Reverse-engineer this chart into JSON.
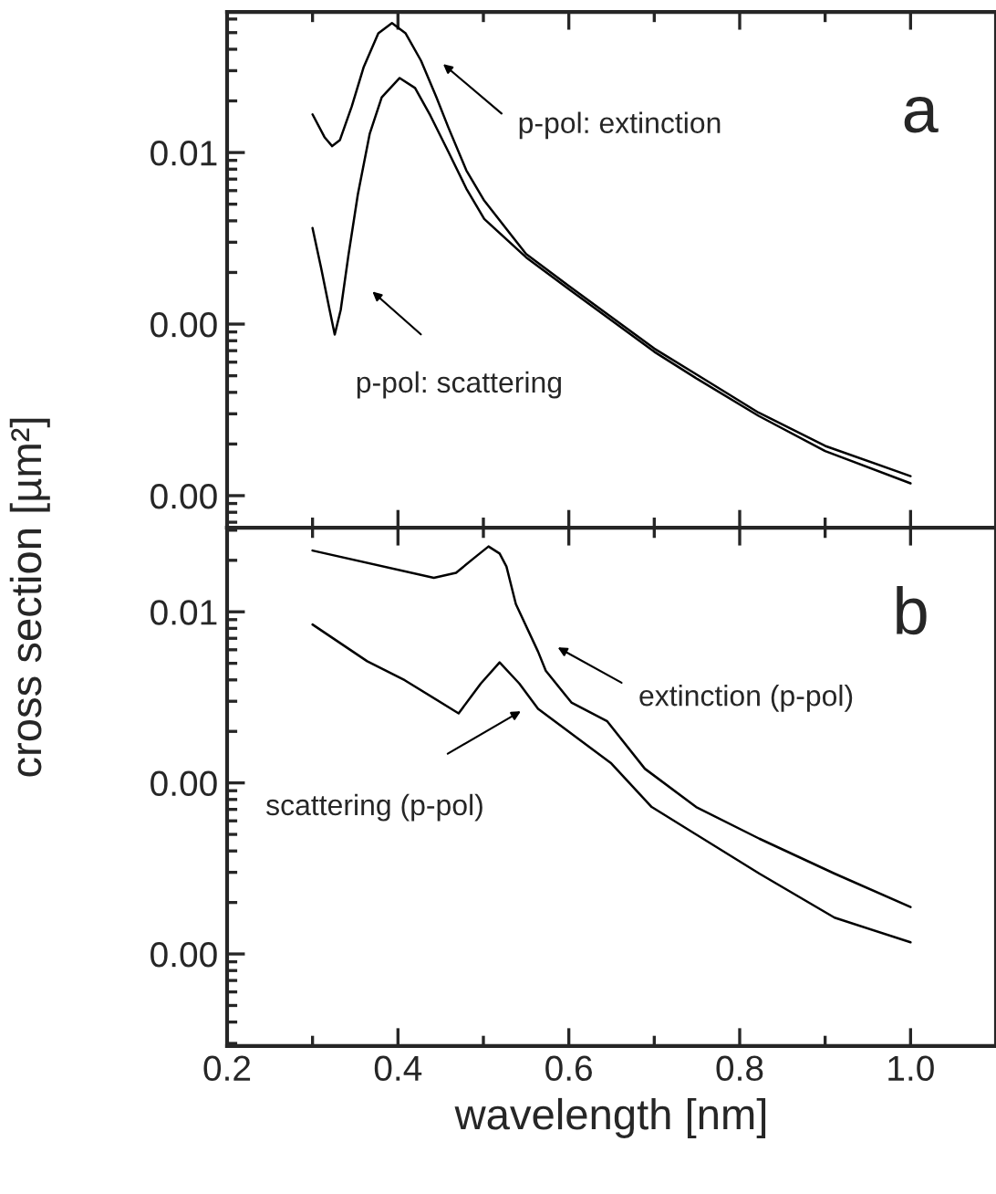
{
  "chart_data": [
    {
      "type": "line",
      "ylabel": "cross section [µm²]",
      "log": "y",
      "xlim": [
        0.2,
        1.1
      ],
      "ylim": [
        6.5e-05,
        0.066
      ],
      "xticks": [
        0.2,
        0.4,
        0.6,
        0.8,
        1.0
      ],
      "yticks": [
        {
          "value": 0.01,
          "label": "0.01"
        },
        {
          "value": 0.001,
          "label": "0.00"
        },
        {
          "value": 0.0001,
          "label": "0.00"
        }
      ],
      "tick_labels": "y",
      "series": [
        {
          "color": "#000000",
          "x": [
            0.3,
            0.314,
            0.323,
            0.332,
            0.346,
            0.36,
            0.377,
            0.393,
            0.409,
            0.427,
            0.445,
            0.459,
            0.48,
            0.501,
            0.55,
            0.6,
            0.7,
            0.75,
            0.822,
            0.9,
            1.0
          ],
          "values": [
            0.0167,
            0.0123,
            0.0109,
            0.0118,
            0.0186,
            0.0316,
            0.0495,
            0.0568,
            0.0495,
            0.0343,
            0.021,
            0.014,
            0.00788,
            0.00524,
            0.00256,
            0.00167,
            0.00072,
            0.000507,
            0.000305,
            0.000195,
            0.00013
          ]
        },
        {
          "color": "#000000",
          "x": [
            0.3,
            0.31,
            0.32,
            0.326,
            0.333,
            0.342,
            0.353,
            0.367,
            0.381,
            0.402,
            0.42,
            0.438,
            0.459,
            0.48,
            0.501,
            0.55,
            0.6,
            0.7,
            0.75,
            0.822,
            0.9,
            1.0
          ],
          "values": [
            0.00363,
            0.00213,
            0.00121,
            0.000869,
            0.00121,
            0.00251,
            0.00568,
            0.0129,
            0.021,
            0.0272,
            0.0238,
            0.0164,
            0.0101,
            0.00617,
            0.0041,
            0.00245,
            0.0016,
            0.00069,
            0.00048,
            0.000292,
            0.000182,
            0.000118
          ]
        }
      ],
      "annotations": [
        "p-pol: extinction",
        "p-pol: scattering",
        "a"
      ]
    },
    {
      "type": "line",
      "xlabel": "wavelength [nm]",
      "log": "y",
      "xlim": [
        0.2,
        1.1
      ],
      "ylim": [
        2.9e-05,
        0.031
      ],
      "xticks": [
        0.2,
        0.4,
        0.6,
        0.8,
        {
          "value": 1.0,
          "label": "1.0"
        }
      ],
      "yticks": [
        {
          "value": 0.01,
          "label": "0.01"
        },
        {
          "value": 0.001,
          "label": "0.00"
        },
        {
          "value": 0.0001,
          "label": "0.00"
        }
      ],
      "series": [
        {
          "color": "#000000",
          "x": [
            0.3,
            0.442,
            0.468,
            0.49,
            0.506,
            0.519,
            0.527,
            0.538,
            0.564,
            0.573,
            0.603,
            0.645,
            0.689,
            0.749,
            0.823,
            0.911,
            1.0
          ],
          "values": [
            0.0228,
            0.0158,
            0.0169,
            0.0208,
            0.0241,
            0.0219,
            0.0184,
            0.0111,
            0.00585,
            0.00453,
            0.00295,
            0.00229,
            0.00121,
            0.000723,
            0.000472,
            0.000295,
            0.000188
          ]
        },
        {
          "color": "#000000",
          "x": [
            0.3,
            0.364,
            0.408,
            0.471,
            0.497,
            0.519,
            0.542,
            0.564,
            0.649,
            0.697,
            0.823,
            0.911,
            1.0
          ],
          "values": [
            0.00843,
            0.00514,
            0.00398,
            0.00255,
            0.00381,
            0.00506,
            0.00381,
            0.00271,
            0.00131,
            0.000723,
            0.000295,
            0.000163,
            0.000117
          ]
        }
      ],
      "annotations": [
        "extinction (p-pol)",
        "scattering (p-pol)",
        "b"
      ]
    }
  ]
}
